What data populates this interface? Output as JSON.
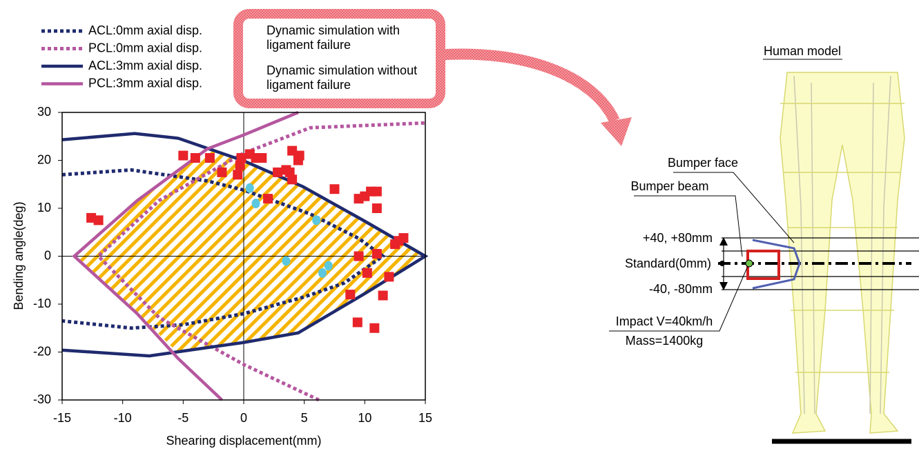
{
  "chart_data": {
    "type": "line",
    "xlabel": "Shearing displacement(mm)",
    "ylabel": "Bending angle(deg)",
    "xlim": [
      -15,
      15
    ],
    "xticks": [
      -15,
      -10,
      -5,
      0,
      5,
      10,
      15
    ],
    "ylim": [
      -30,
      30
    ],
    "yticks": [
      -30,
      -20,
      -10,
      0,
      10,
      20,
      30
    ],
    "series": [
      {
        "name": "ACL:0mm axial disp.",
        "color": "#1f2a6e",
        "style": "dotted",
        "x": [
          -15,
          -9.3,
          -3,
          0,
          5.5,
          9.5,
          11.5,
          8.3,
          5,
          0,
          -5,
          -9.3,
          -15
        ],
        "values": [
          17,
          18,
          15.7,
          13.8,
          8.8,
          3.7,
          0,
          -5.6,
          -8.5,
          -12,
          -14.3,
          -15,
          -13.5
        ]
      },
      {
        "name": "PCL:0mm axial disp.",
        "color": "#b5579f",
        "style": "dotted",
        "x": [
          6.2,
          0,
          -7,
          -12,
          -7,
          0,
          5.5,
          15
        ],
        "values": [
          -30,
          -22.6,
          -12.8,
          0,
          11.6,
          21.5,
          26.8,
          27.8
        ]
      },
      {
        "name": "ACL:3mm axial disp.",
        "color": "#1f2a6e",
        "style": "solid",
        "x": [
          -15,
          -9,
          -5.4,
          0,
          4.9,
          10,
          15,
          10,
          4.5,
          0,
          -7.8,
          -15
        ],
        "values": [
          24.3,
          25.6,
          24.6,
          19.9,
          14.5,
          7.3,
          0,
          -7.8,
          -16,
          -18,
          -20.8,
          -19.6
        ]
      },
      {
        "name": "PCL:3mm axial disp.",
        "color": "#b5579f",
        "style": "solid",
        "x": [
          -1.8,
          -5.4,
          -8.8,
          -14,
          -8.8,
          -3,
          0,
          4.5
        ],
        "values": [
          -30,
          -21.4,
          -12,
          0,
          11.6,
          22.4,
          25.3,
          30
        ]
      },
      {
        "name": "Dynamic simulation with ligament failure",
        "color": "#e8232a",
        "style": "square",
        "x": [
          -12.6,
          -12,
          -5,
          -4,
          -2.8,
          -1.8,
          -0.5,
          -0.3,
          -0.2,
          0.5,
          1,
          1.5,
          2,
          2.8,
          3.5,
          3.8,
          4,
          4,
          4.5,
          4.6,
          7.5,
          9.5,
          10,
          10.5,
          11,
          11,
          11,
          9.5,
          10.2,
          12,
          11.5,
          8.8,
          9.4,
          10.8,
          12.5,
          13.2,
          12.8
        ],
        "values": [
          8,
          7.5,
          21,
          20.5,
          20.5,
          17.5,
          17,
          19,
          20.5,
          21.3,
          20.5,
          20.5,
          12,
          17.5,
          18,
          17.5,
          16,
          22,
          20,
          21,
          14,
          12,
          12.5,
          13.5,
          13.5,
          10,
          0.5,
          0,
          -3.5,
          -4.3,
          -8.2,
          -8,
          -13.8,
          -15,
          2.5,
          3.8,
          3.2
        ]
      },
      {
        "name": "Dynamic simulation without ligament failure",
        "color": "#5bc8e0",
        "style": "circle",
        "x": [
          0.5,
          1,
          6,
          3.5,
          6.5,
          7
        ],
        "values": [
          14.2,
          11,
          7.5,
          -1,
          -3.5,
          -2
        ]
      }
    ]
  },
  "diagram": {
    "human_model": "Human model",
    "bumper_face": "Bumper face",
    "bumper_beam": "Bumper beam",
    "upper_offset": "+40, +80mm",
    "standard": "Standard(0mm)",
    "lower_offset": "-40, -80mm",
    "impact": "Impact V=40km/h",
    "mass": "Mass=1400kg"
  }
}
